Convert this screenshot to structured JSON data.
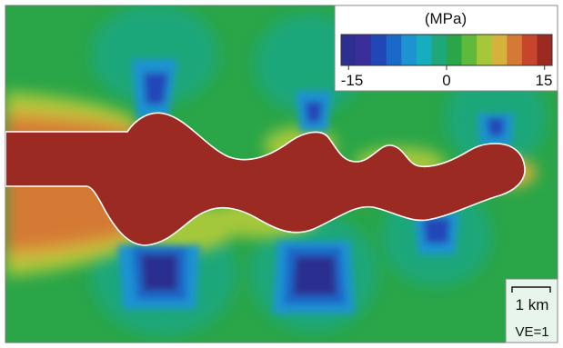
{
  "colorbar": {
    "unit_label": "(MPa)",
    "tick_labels": [
      "-15",
      "0",
      "15"
    ],
    "range": [
      -15,
      15
    ],
    "colors": [
      "#2c2f8f",
      "#3a2f9a",
      "#2146b8",
      "#1a68c8",
      "#1e93d2",
      "#16aebe",
      "#1fa77a",
      "#2aa548",
      "#5fb93a",
      "#a5c83a",
      "#d6b13b",
      "#d47a36",
      "#c8452d",
      "#9b2a23"
    ]
  },
  "scale_bar": {
    "label": "1 km"
  },
  "exaggeration": {
    "label": "VE=1"
  },
  "field_colors": {
    "background": "#2aa548",
    "body": "#9b2a23",
    "body_outline": "#ffffff"
  }
}
